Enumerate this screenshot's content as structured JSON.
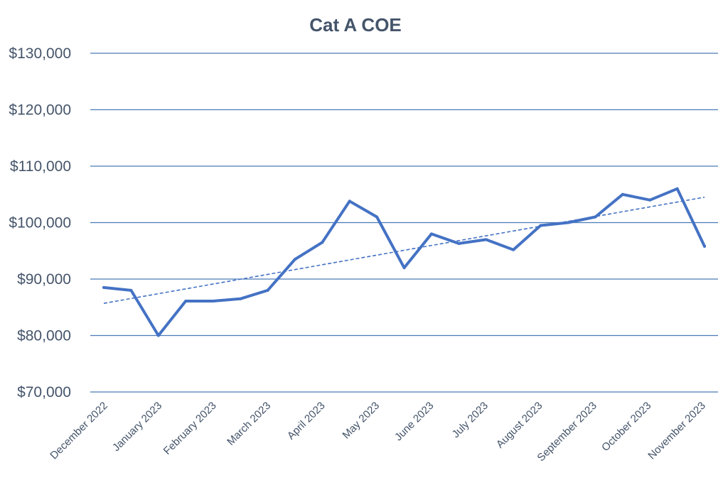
{
  "chart_data": {
    "type": "line",
    "title": "Cat A COE",
    "xlabel": "",
    "ylabel": "",
    "ylim": [
      70000,
      130000
    ],
    "y_ticks": [
      70000,
      80000,
      90000,
      100000,
      110000,
      120000,
      130000
    ],
    "y_tick_labels": [
      "$70,000",
      "$80,000",
      "$90,000",
      "$100,000",
      "$110,000",
      "$120,000",
      "$130,000"
    ],
    "x_tick_labels": [
      "December 2022",
      "January 2023",
      "February 2023",
      "March 2023",
      "April 2023",
      "May 2023",
      "June 2023",
      "July 2023",
      "August 2023",
      "September 2023",
      "October 2023",
      "November 2023"
    ],
    "grid": true,
    "series": [
      {
        "name": "Cat A COE",
        "values": [
          88500,
          88000,
          80000,
          86100,
          86100,
          86500,
          88000,
          93500,
          96500,
          103800,
          101000,
          92000,
          98000,
          96300,
          97000,
          95200,
          99500,
          100000,
          101000,
          105000,
          104000,
          106000,
          95800
        ]
      },
      {
        "name": "Linear trendline",
        "style": "dashed",
        "values": [
          85700,
          104500
        ]
      }
    ],
    "colors": {
      "line": "#4472c4",
      "grid": "#4a7bb7",
      "text": "#44546a"
    }
  }
}
